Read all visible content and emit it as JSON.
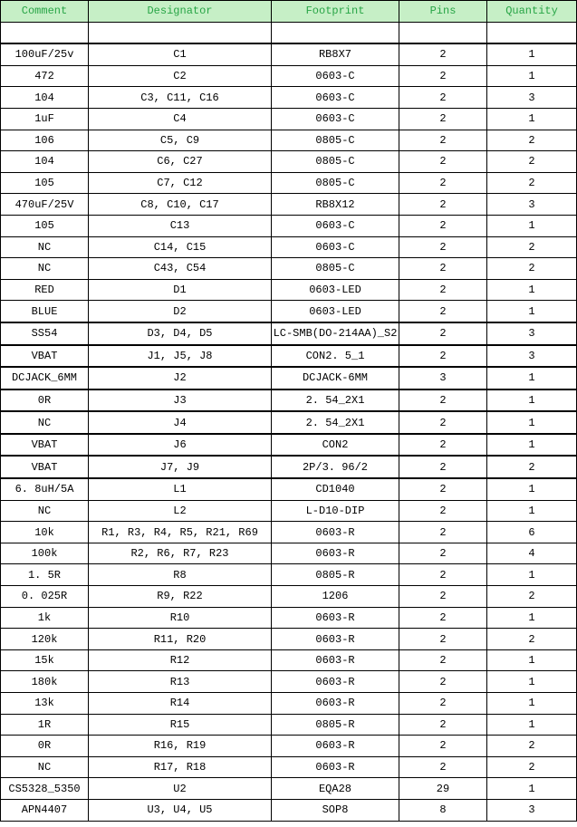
{
  "colors": {
    "header_bg": "#C6EFC6",
    "header_text": "#28A546",
    "border": "#000000",
    "cell_bg": "#FFFFFF",
    "cell_text": "#000000"
  },
  "table": {
    "columns": [
      "Comment",
      "Designator",
      "Footprint",
      "Pins",
      "Quantity"
    ],
    "thick_top_rows": [
      1,
      14,
      15,
      16,
      17,
      18,
      19,
      20,
      21
    ],
    "rows": [
      [
        "",
        "",
        "",
        "",
        ""
      ],
      [
        "100uF/25v",
        "C1",
        "RB8X7",
        "2",
        "1"
      ],
      [
        "472",
        "C2",
        "0603-C",
        "2",
        "1"
      ],
      [
        "104",
        "C3, C11, C16",
        "0603-C",
        "2",
        "3"
      ],
      [
        "1uF",
        "C4",
        "0603-C",
        "2",
        "1"
      ],
      [
        "106",
        "C5, C9",
        "0805-C",
        "2",
        "2"
      ],
      [
        "104",
        "C6, C27",
        "0805-C",
        "2",
        "2"
      ],
      [
        "105",
        "C7, C12",
        "0805-C",
        "2",
        "2"
      ],
      [
        "470uF/25V",
        "C8, C10, C17",
        "RB8X12",
        "2",
        "3"
      ],
      [
        "105",
        "C13",
        "0603-C",
        "2",
        "1"
      ],
      [
        "NC",
        "C14, C15",
        "0603-C",
        "2",
        "2"
      ],
      [
        "NC",
        "C43, C54",
        "0805-C",
        "2",
        "2"
      ],
      [
        "RED",
        "D1",
        "0603-LED",
        "2",
        "1"
      ],
      [
        "BLUE",
        "D2",
        "0603-LED",
        "2",
        "1"
      ],
      [
        "SS54",
        "D3, D4, D5",
        "LC-SMB(DO-214AA)_S2",
        "2",
        "3"
      ],
      [
        "VBAT",
        "J1, J5, J8",
        "CON2. 5_1",
        "2",
        "3"
      ],
      [
        "DCJACK_6MM",
        "J2",
        "DCJACK-6MM",
        "3",
        "1"
      ],
      [
        "0R",
        "J3",
        "2. 54_2X1",
        "2",
        "1"
      ],
      [
        "NC",
        "J4",
        "2. 54_2X1",
        "2",
        "1"
      ],
      [
        "VBAT",
        "J6",
        "CON2",
        "2",
        "1"
      ],
      [
        "VBAT",
        "J7, J9",
        "2P/3. 96/2",
        "2",
        "2"
      ],
      [
        "6. 8uH/5A",
        "L1",
        "CD1040",
        "2",
        "1"
      ],
      [
        "NC",
        "L2",
        "L-D10-DIP",
        "2",
        "1"
      ],
      [
        "10k",
        "R1, R3, R4, R5, R21, R69",
        "0603-R",
        "2",
        "6"
      ],
      [
        "100k",
        "R2, R6, R7, R23",
        "0603-R",
        "2",
        "4"
      ],
      [
        "1. 5R",
        "R8",
        "0805-R",
        "2",
        "1"
      ],
      [
        "0. 025R",
        "R9, R22",
        "1206",
        "2",
        "2"
      ],
      [
        "1k",
        "R10",
        "0603-R",
        "2",
        "1"
      ],
      [
        "120k",
        "R11, R20",
        "0603-R",
        "2",
        "2"
      ],
      [
        "15k",
        "R12",
        "0603-R",
        "2",
        "1"
      ],
      [
        "180k",
        "R13",
        "0603-R",
        "2",
        "1"
      ],
      [
        "13k",
        "R14",
        "0603-R",
        "2",
        "1"
      ],
      [
        "1R",
        "R15",
        "0805-R",
        "2",
        "1"
      ],
      [
        "0R",
        "R16, R19",
        "0603-R",
        "2",
        "2"
      ],
      [
        "NC",
        "R17, R18",
        "0603-R",
        "2",
        "2"
      ],
      [
        "CS5328_5350",
        "U2",
        "EQA28",
        "29",
        "1"
      ],
      [
        "APN4407",
        "U3, U4, U5",
        "SOP8",
        "8",
        "3"
      ]
    ]
  }
}
